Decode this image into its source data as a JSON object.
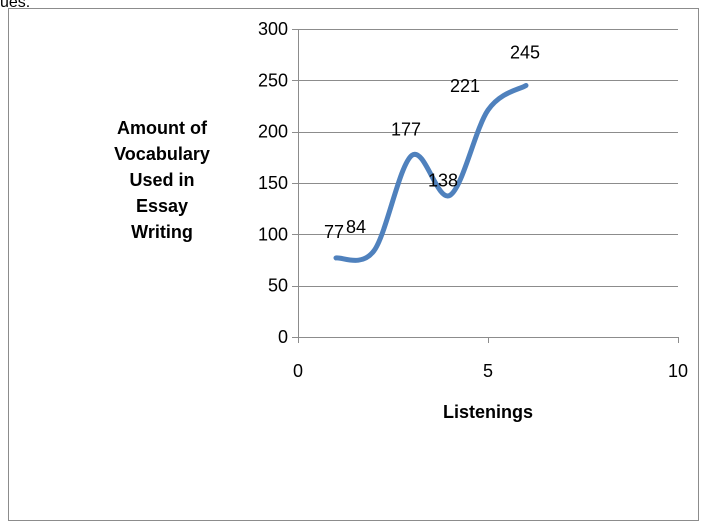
{
  "clipped_text": "ues.",
  "colors": {
    "line": "#4f81bd",
    "grid": "#8c8c8c",
    "frame": "#8c8c8c",
    "text": "#000000"
  },
  "chart_data": {
    "type": "line",
    "smoothed": true,
    "title": "",
    "xlabel": "Listenings",
    "ylabel_lines": [
      "Amount of",
      "Vocabulary",
      "Used in",
      "Essay",
      "Writing"
    ],
    "xlim": [
      0,
      10
    ],
    "ylim": [
      0,
      300
    ],
    "x_ticks": [
      0,
      5,
      10
    ],
    "y_ticks": [
      0,
      50,
      100,
      150,
      200,
      250,
      300
    ],
    "grid": "horizontal",
    "legend": "none",
    "series": [
      {
        "x": [
          1,
          2,
          3,
          4,
          5,
          6
        ],
        "values": [
          77,
          84,
          177,
          138,
          221,
          245
        ],
        "labels": [
          "77",
          "84",
          "177",
          "138",
          "221",
          "245"
        ]
      }
    ]
  }
}
